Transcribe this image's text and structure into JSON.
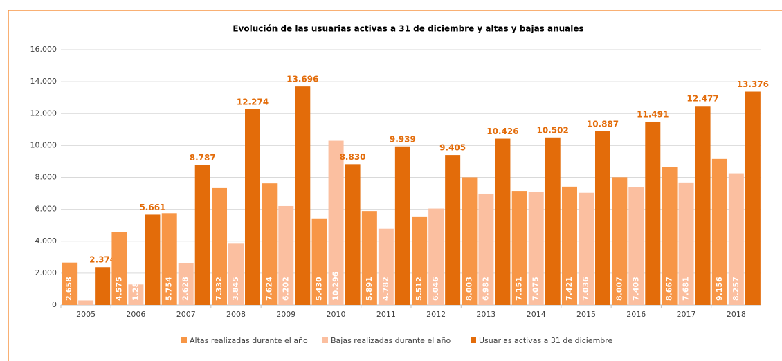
{
  "chart_data": {
    "type": "bar",
    "title": "Evolución de las usuarias activas a 31 de diciembre y altas y bajas anuales",
    "categories": [
      "2005",
      "2006",
      "2007",
      "2008",
      "2009",
      "2010",
      "2011",
      "2012",
      "2013",
      "2014",
      "2015",
      "2016",
      "2017",
      "2018"
    ],
    "series": [
      {
        "name": "Altas realizadas durante el año",
        "color": "#f79646",
        "values": [
          2658,
          4575,
          5754,
          7332,
          7624,
          5430,
          5891,
          5512,
          8003,
          7151,
          7421,
          8007,
          8667,
          9156
        ],
        "value_labels": [
          "2.658",
          "4.575",
          "5.754",
          "7.332",
          "7.624",
          "5.430",
          "5.891",
          "5.512",
          "8.003",
          "7.151",
          "7.421",
          "8.007",
          "8.667",
          "9.156"
        ]
      },
      {
        "name": "Bajas realizadas durante el año",
        "color": "#fbbfa0",
        "values": [
          284,
          1288,
          2628,
          3845,
          6202,
          10296,
          4782,
          6046,
          6982,
          7075,
          7036,
          7403,
          7681,
          8257
        ],
        "value_labels": [
          "284",
          "1.288",
          "2.628",
          "3.845",
          "6.202",
          "10.296",
          "4.782",
          "6.046",
          "6.982",
          "7.075",
          "7.036",
          "7.403",
          "7.681",
          "8.257"
        ]
      },
      {
        "name": "Usuarias activas a 31 de diciembre",
        "color": "#e36c0a",
        "values": [
          2374,
          5661,
          8787,
          12274,
          13696,
          8830,
          9939,
          9405,
          10426,
          10502,
          10887,
          11491,
          12477,
          13376
        ],
        "value_labels": [
          "2.374",
          "5.661",
          "8.787",
          "12.274",
          "13.696",
          "8.830",
          "9.939",
          "9.405",
          "10.426",
          "10.502",
          "10.887",
          "11.491",
          "12.477",
          "13.376"
        ]
      }
    ],
    "ylim": [
      0,
      16000
    ],
    "yticks": [
      0,
      {
        "value": 2000,
        "label": "2.000"
      },
      {
        "value": 4000,
        "label": "4.000"
      },
      {
        "value": 6000,
        "label": "6.000"
      },
      {
        "value": 8000,
        "label": "8.000"
      },
      {
        "value": 10000,
        "label": "10.000"
      },
      {
        "value": 12000,
        "label": "12.000"
      },
      {
        "value": 14000,
        "label": "14.000"
      },
      {
        "value": 16000,
        "label": "16.000"
      }
    ],
    "grid": true,
    "legend": "bottom"
  }
}
